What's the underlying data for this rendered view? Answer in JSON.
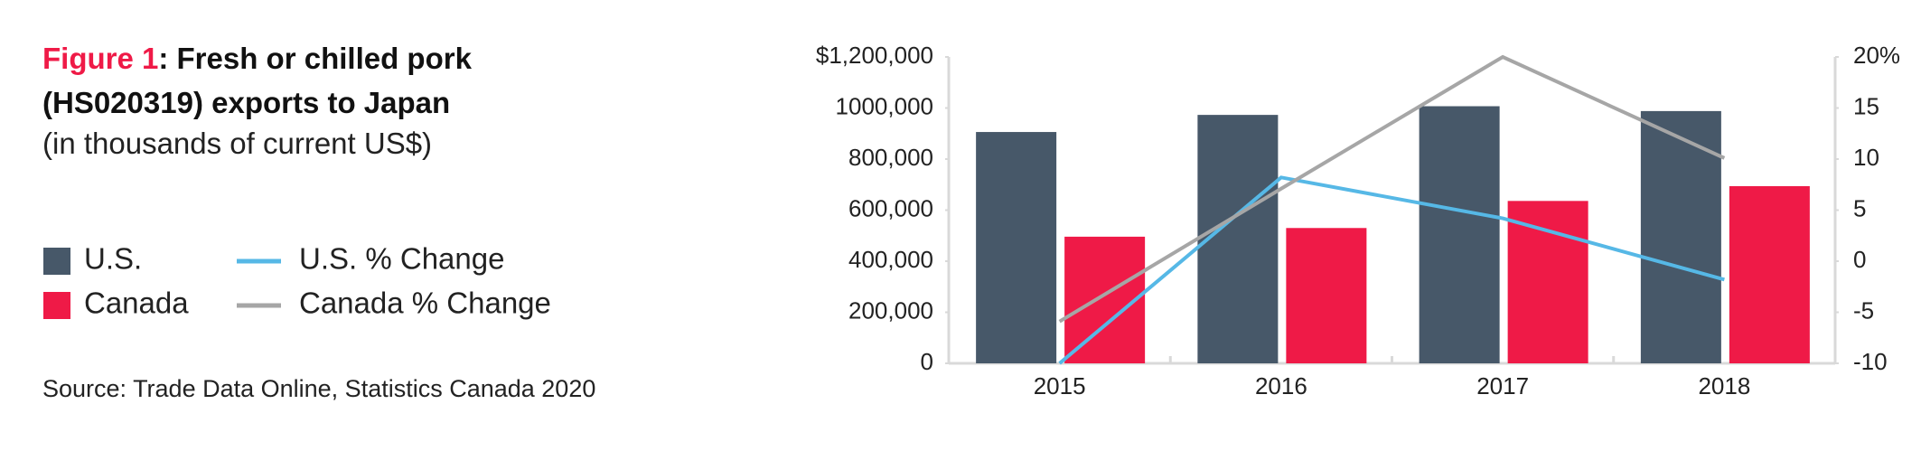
{
  "chart_data": {
    "type": "bar",
    "title_label": "Figure 1",
    "title": ": Fresh or chilled pork (HS020319) exports to Japan",
    "subtitle": "(in thousands of current US$)",
    "source": "Source: Trade Data Online, Statistics Canada 2020",
    "categories": [
      "2015",
      "2016",
      "2017",
      "2018"
    ],
    "series": [
      {
        "name": "U.S.",
        "type": "bar",
        "color": "#475869",
        "values": [
          906000,
          973000,
          1007000,
          988000
        ]
      },
      {
        "name": "Canada",
        "type": "bar",
        "color": "#ef1a47",
        "values": [
          496000,
          530000,
          636000,
          694000
        ]
      },
      {
        "name": "U.S. % Change",
        "type": "line",
        "axis": "y2",
        "color": "#56b8e6",
        "values": [
          -10,
          8.2,
          4.2,
          -1.8
        ]
      },
      {
        "name": "Canada % Change",
        "type": "line",
        "axis": "y2",
        "color": "#a6a6a6",
        "values": [
          -5.9,
          7.1,
          20,
          10.1
        ]
      }
    ],
    "ylim": [
      0,
      1200000
    ],
    "yticks": [
      0,
      {
        "value": 200000,
        "label": "200,000"
      },
      {
        "value": 400000,
        "label": "400,000"
      },
      {
        "value": 600000,
        "label": "600,000"
      },
      {
        "value": 800000,
        "label": "800,000"
      },
      {
        "value": 1000000,
        "label": "1000,000"
      },
      {
        "value": 1200000,
        "label": "$1,200,000"
      }
    ],
    "y2lim": [
      -10,
      20
    ],
    "y2ticks": [
      -10,
      -5,
      0,
      5,
      10,
      15,
      {
        "value": 20,
        "label": "20%"
      }
    ],
    "grid": false
  }
}
